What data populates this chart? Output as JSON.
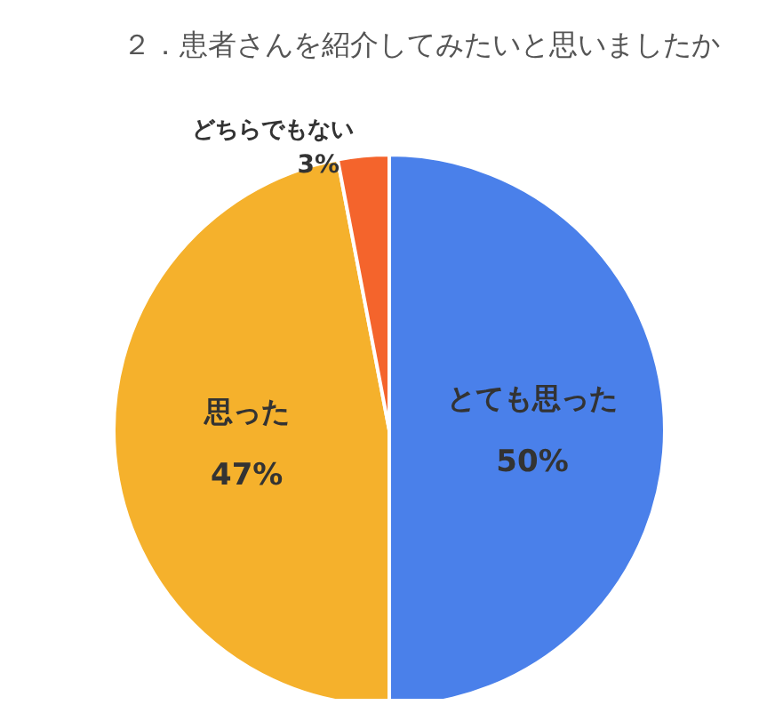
{
  "chart_data": {
    "type": "pie",
    "title": "２．患者さんを紹介してみたいと思いましたか",
    "categories": [
      "とても思った",
      "思った",
      "どちらでもない"
    ],
    "values": [
      50,
      47,
      3
    ],
    "value_labels": [
      "50%",
      "47%",
      "3%"
    ],
    "colors": [
      "#4a80ea",
      "#f5b12c",
      "#f4642c"
    ],
    "legend": false
  }
}
